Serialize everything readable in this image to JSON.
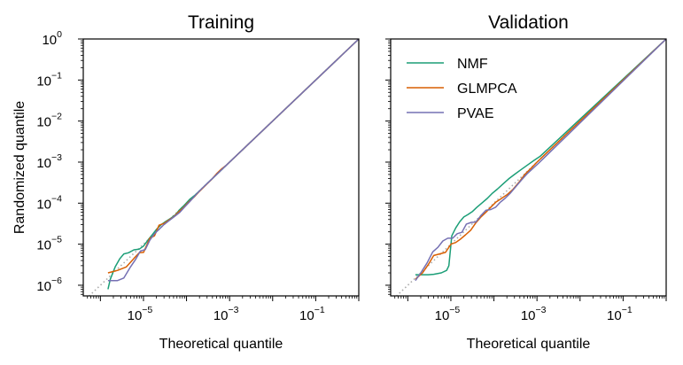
{
  "chart_data": [
    {
      "type": "line",
      "title": "Training",
      "xlabel": "Theoretical quantile",
      "ylabel": "Randomized quantile",
      "xscale": "log",
      "yscale": "log",
      "xlim": [
        4e-07,
        1.0
      ],
      "ylim": [
        5.5e-07,
        1.0
      ],
      "x_ticks": [
        {
          "value": 1e-05,
          "base": "10",
          "exp": "−5"
        },
        {
          "value": 0.001,
          "base": "10",
          "exp": "−3"
        },
        {
          "value": 0.1,
          "base": "10",
          "exp": "−1"
        }
      ],
      "y_ticks": [
        {
          "value": 1e-06,
          "base": "10",
          "exp": "−6"
        },
        {
          "value": 1e-05,
          "base": "10",
          "exp": "−5"
        },
        {
          "value": 0.0001,
          "base": "10",
          "exp": "−4"
        },
        {
          "value": 0.001,
          "base": "10",
          "exp": "−3"
        },
        {
          "value": 0.01,
          "base": "10",
          "exp": "−2"
        },
        {
          "value": 0.1,
          "base": "10",
          "exp": "−1"
        },
        {
          "value": 1,
          "base": "10",
          "exp": "0"
        }
      ],
      "reference_line": {
        "style": "dotted",
        "color": "#aaaaaa",
        "x": [
          4e-07,
          1.0
        ],
        "y": [
          4e-07,
          1.0
        ]
      },
      "legend": null,
      "series": [
        {
          "name": "NMF",
          "color": "#1b9e77",
          "x": [
            1.5e-06,
            1.7e-06,
            2.2e-06,
            2.8e-06,
            3.5e-06,
            4.5e-06,
            6e-06,
            8e-06,
            1e-05,
            1.3e-05,
            1.6e-05,
            2e-05,
            2.6e-05,
            3.3e-05,
            4.2e-05,
            5.5e-05,
            7e-05,
            9e-05,
            0.00012,
            0.00016,
            0.00022,
            0.0003,
            0.00042,
            0.0006,
            0.00085,
            0.0012,
            1.0
          ],
          "y": [
            8e-07,
            1.4e-06,
            2.8e-06,
            4.4e-06,
            5.8e-06,
            6.2e-06,
            7.3e-06,
            7.6e-06,
            9e-06,
            1.3e-05,
            1.7e-05,
            2.3e-05,
            3e-05,
            3.6e-05,
            4.2e-05,
            5.2e-05,
            7e-05,
            9e-05,
            0.000125,
            0.00016,
            0.00022,
            0.0003,
            0.00042,
            0.0006,
            0.00085,
            0.0012,
            1.0
          ]
        },
        {
          "name": "GLMPCA",
          "color": "#d95f02",
          "x": [
            1.5e-06,
            2.5e-06,
            4e-06,
            6e-06,
            8e-06,
            1e-05,
            1.4e-05,
            1.8e-05,
            2.3e-05,
            3e-05,
            3.8e-05,
            5e-05,
            6.5e-05,
            8.5e-05,
            0.00011,
            0.00015,
            0.0002,
            0.00028,
            0.00038,
            0.0005,
            0.00065,
            0.00085,
            0.0012,
            1.0
          ],
          "y": [
            2e-06,
            2.3e-06,
            2.8e-06,
            4.5e-06,
            6.2e-06,
            6.3e-06,
            1.4e-05,
            1.6e-05,
            2.9e-05,
            3.2e-05,
            3.8e-05,
            4.6e-05,
            6.1e-05,
            7.8e-05,
            0.000105,
            0.00014,
            0.000195,
            0.000275,
            0.000375,
            0.00052,
            0.00068,
            0.00085,
            0.0012,
            1.0
          ]
        },
        {
          "name": "PVAE",
          "color": "#7570b3",
          "x": [
            1.5e-06,
            2e-06,
            2.5e-06,
            3.5e-06,
            5e-06,
            6.5e-06,
            8.5e-06,
            1.1e-05,
            1.4e-05,
            1.8e-05,
            2.3e-05,
            3e-05,
            4e-05,
            5.2e-05,
            7e-05,
            9e-05,
            0.00012,
            0.00016,
            0.00022,
            0.0003,
            0.00042,
            0.0006,
            0.00085,
            0.0012,
            1.0
          ],
          "y": [
            1.3e-06,
            1.3e-06,
            1.3e-06,
            1.5e-06,
            2.8e-06,
            4.2e-06,
            6.8e-06,
            7.4e-06,
            1.25e-05,
            1.8e-05,
            2.3e-05,
            3e-05,
            3.8e-05,
            4.7e-05,
            6e-05,
            8e-05,
            0.00011,
            0.000155,
            0.00022,
            0.0003,
            0.00042,
            0.0006,
            0.00085,
            0.0012,
            1.0
          ]
        }
      ]
    },
    {
      "type": "line",
      "title": "Validation",
      "xlabel": "Theoretical quantile",
      "ylabel": "",
      "xscale": "log",
      "yscale": "log",
      "xlim": [
        4e-07,
        1.0
      ],
      "ylim": [
        5.5e-07,
        1.0
      ],
      "x_ticks": [
        {
          "value": 1e-05,
          "base": "10",
          "exp": "−5"
        },
        {
          "value": 0.001,
          "base": "10",
          "exp": "−3"
        },
        {
          "value": 0.1,
          "base": "10",
          "exp": "−1"
        }
      ],
      "y_ticks": [
        {
          "value": 1e-06
        },
        {
          "value": 1e-05
        },
        {
          "value": 0.0001
        },
        {
          "value": 0.001
        },
        {
          "value": 0.01
        },
        {
          "value": 0.1
        },
        {
          "value": 1
        }
      ],
      "reference_line": {
        "style": "dotted",
        "color": "#aaaaaa",
        "x": [
          4e-07,
          1.0
        ],
        "y": [
          4e-07,
          1.0
        ]
      },
      "legend": {
        "position": "top-left",
        "entries": [
          "NMF",
          "GLMPCA",
          "PVAE"
        ]
      },
      "series": [
        {
          "name": "NMF",
          "color": "#1b9e77",
          "x": [
            1.5e-06,
            2.2e-06,
            3e-06,
            4e-06,
            6e-06,
            8e-06,
            9e-06,
            1.05e-05,
            1.3e-05,
            1.6e-05,
            2e-05,
            2.5e-05,
            3.2e-05,
            4e-05,
            5.2e-05,
            7e-05,
            9e-05,
            0.00012,
            0.00016,
            0.00022,
            0.0003,
            0.00042,
            0.0006,
            0.00085,
            0.0012,
            1.0
          ],
          "y": [
            1.8e-06,
            1.8e-06,
            1.8e-06,
            1.85e-06,
            2e-06,
            2.3e-06,
            3e-06,
            1.6e-05,
            2.5e-05,
            3.5e-05,
            4.6e-05,
            5.3e-05,
            6.3e-05,
            7.9e-05,
            0.0001,
            0.00013,
            0.00017,
            0.00022,
            0.00029,
            0.00039,
            0.0005,
            0.00065,
            0.00085,
            0.0011,
            0.0014,
            1.0
          ]
        },
        {
          "name": "GLMPCA",
          "color": "#d95f02",
          "x": [
            1.5e-06,
            2.2e-06,
            3e-06,
            4e-06,
            5.5e-06,
            7.5e-06,
            1e-05,
            1.3e-05,
            1.7e-05,
            2.2e-05,
            2.9e-05,
            3.8e-05,
            5e-05,
            6.5e-05,
            8.5e-05,
            0.00011,
            0.00015,
            0.0002,
            0.00028,
            0.00038,
            0.00052,
            0.00072,
            0.001,
            0.0014,
            1.0
          ],
          "y": [
            1.4e-06,
            2e-06,
            3.2e-06,
            5.3e-06,
            5.8e-06,
            6.3e-06,
            1e-05,
            1.1e-05,
            1.35e-05,
            1.7e-05,
            2.2e-05,
            3.3e-05,
            4.6e-05,
            6e-05,
            8e-05,
            0.000105,
            0.00013,
            0.00016,
            0.00022,
            0.00032,
            0.0005,
            0.0007,
            0.001,
            0.0014,
            1.0
          ]
        },
        {
          "name": "PVAE",
          "color": "#7570b3",
          "x": [
            1.5e-06,
            2e-06,
            2.8e-06,
            3.8e-06,
            5e-06,
            6.5e-06,
            8.5e-06,
            1.1e-05,
            1.4e-05,
            1.8e-05,
            2.3e-05,
            3e-05,
            3.8e-05,
            5e-05,
            6.5e-05,
            8.5e-05,
            0.00011,
            0.00014,
            0.00018,
            0.00024,
            0.00032,
            0.00043,
            0.00058,
            0.0008,
            0.0011,
            0.0015,
            1.0
          ],
          "y": [
            1.3e-06,
            2e-06,
            3.5e-06,
            6.5e-06,
            8.4e-06,
            1.2e-05,
            1.4e-05,
            1.4e-05,
            1.8e-05,
            1.95e-05,
            3.1e-05,
            3.4e-05,
            3.45e-05,
            5e-05,
            6.7e-05,
            7e-05,
            8e-05,
            0.000105,
            0.00013,
            0.000175,
            0.00025,
            0.00036,
            0.00051,
            0.0007,
            0.00095,
            0.0013,
            1.0
          ]
        }
      ]
    }
  ]
}
